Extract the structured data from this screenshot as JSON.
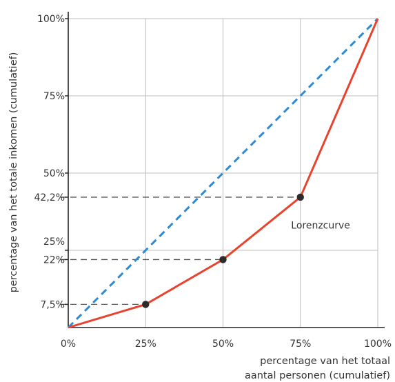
{
  "chart_data": {
    "type": "line",
    "title": "",
    "xlabel_lines": [
      "percentage van het totaal",
      "aantal personen (cumulatief)"
    ],
    "ylabel": "percentage van het totale inkomen (cumulatief)",
    "xlim": [
      0,
      100
    ],
    "ylim": [
      0,
      100
    ],
    "grid": true,
    "x_ticks": [
      {
        "value": 0,
        "label": "0%"
      },
      {
        "value": 25,
        "label": "25%"
      },
      {
        "value": 50,
        "label": "50%"
      },
      {
        "value": 75,
        "label": "75%"
      },
      {
        "value": 100,
        "label": "100%"
      }
    ],
    "y_ticks": [
      {
        "value": 7.5,
        "label": "7,5%"
      },
      {
        "value": 22,
        "label": "22%"
      },
      {
        "value": 25,
        "label": "25%"
      },
      {
        "value": 42.2,
        "label": "42,2%"
      },
      {
        "value": 50,
        "label": "50%"
      },
      {
        "value": 75,
        "label": "75%"
      },
      {
        "value": 100,
        "label": "100%"
      }
    ],
    "series": [
      {
        "name": "",
        "style": "dashed",
        "color": "#2a8bd6",
        "x": [
          0,
          100
        ],
        "y": [
          0,
          100
        ]
      },
      {
        "name": "Lorenzcurve",
        "style": "solid",
        "color": "#e8432e",
        "x": [
          0,
          25,
          50,
          75,
          100
        ],
        "y": [
          0,
          7.5,
          22,
          42.2,
          100
        ]
      }
    ],
    "markers": [
      {
        "x": 25,
        "y": 7.5
      },
      {
        "x": 50,
        "y": 22
      },
      {
        "x": 75,
        "y": 42.2
      }
    ],
    "reference_lines": [
      {
        "from_x": 0,
        "to_x": 25,
        "y": 7.5
      },
      {
        "from_x": 0,
        "to_x": 50,
        "y": 22
      },
      {
        "from_x": 0,
        "to_x": 75,
        "y": 42.2
      }
    ],
    "annotation": {
      "text": "Lorenzcurve",
      "x": 72,
      "y": 32
    }
  }
}
